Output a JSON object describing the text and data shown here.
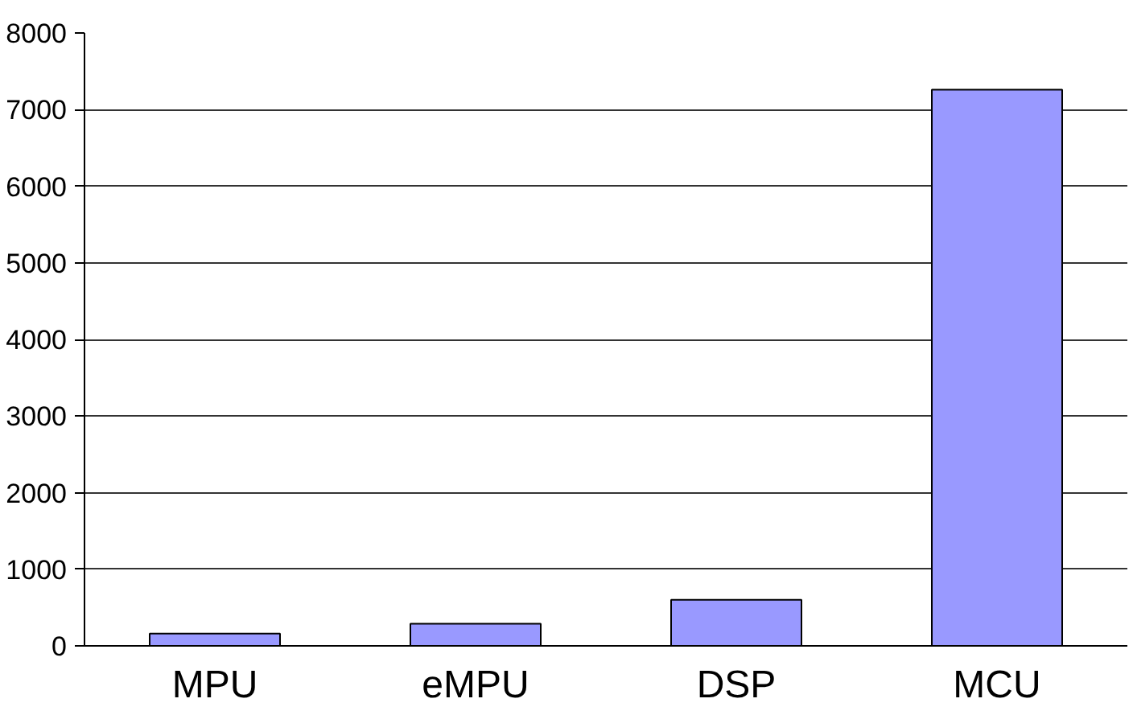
{
  "chart_data": {
    "type": "bar",
    "categories": [
      "MPU",
      "eMPU",
      "DSP",
      "MCU"
    ],
    "values": [
      160,
      290,
      600,
      7260
    ],
    "color": "#9999ff",
    "ylim": [
      0,
      8000
    ],
    "yticks": [
      0,
      1000,
      2000,
      3000,
      4000,
      5000,
      6000,
      7000,
      8000
    ],
    "grid": "y"
  }
}
